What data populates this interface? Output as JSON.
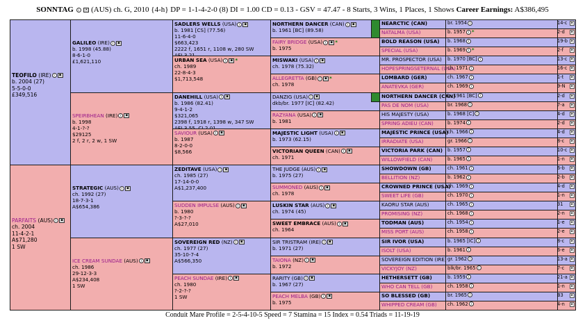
{
  "header": {
    "name": "SONNTAG",
    "details": "(AUS) ch. G, 2010 {4-h} DP = 1-1-4-2-0 (8) DI = 1.00   CD = 0.13 - GSV = 47.47 - 8 Starts, 3 Wins, 1 Places, 1 Shows",
    "earnings_label": "Career Earnings:",
    "earnings_value": "A$386,495"
  },
  "icons": {
    "info": "info-icon",
    "image": "photo-icon",
    "more": "arrow-right-icon"
  },
  "gen1": [
    {
      "name": "TEOFILO",
      "suffix": "(IRE)",
      "bold": true,
      "lines": [
        "b. 2004 (27)",
        "5-5-0-0",
        "£349,516"
      ]
    },
    {
      "name": "PARFAITS",
      "suffix": "(AUS)",
      "bold": false,
      "lines": [
        "ch. 2004",
        "11-4-2-1",
        "A$71,280",
        "1 SW"
      ]
    }
  ],
  "gen2": [
    {
      "name": "GALILEO",
      "suffix": "(IRE)",
      "bold": true,
      "lines": [
        "b. 1998 (45.88)",
        "8-6-1-0",
        "£1,621,110"
      ]
    },
    {
      "name": "SPEIRBHEAN",
      "suffix": "(IRE)",
      "bold": false,
      "lines": [
        "b. 1998",
        "4-1-?-?",
        "$29125",
        "2 f, 2 r, 2 w, 1 SW"
      ]
    },
    {
      "name": "STRATEGIC",
      "suffix": "(AUS)",
      "bold": true,
      "lines": [
        "ch. 1992 (27)",
        "18-7-3-1",
        "A$654,386"
      ]
    },
    {
      "name": "ICE CREAM SUNDAE",
      "suffix": "(AUS)",
      "bold": false,
      "lines": [
        "ch. 1986",
        "29-12-3-3",
        "A$234,408",
        "1 SW"
      ]
    }
  ],
  "gen3": [
    {
      "name": "SADLERS WELLS",
      "suffix": "(USA)",
      "bold": true,
      "lines": [
        "b. 1981 [CS] (77.56)",
        "11-6-4-0",
        "$663,423",
        "2222 f, 1651 r, 1108 w, 280 SW",
        "AEI 3.21"
      ]
    },
    {
      "name": "URBAN SEA",
      "suffix": "(USA)",
      "bold": true,
      "star": "*",
      "lines": [
        "ch. 1989",
        "22-8-4-3",
        "$1,713,548"
      ]
    },
    {
      "name": "DANEHILL",
      "suffix": "(USA)",
      "bold": true,
      "lines": [
        "b. 1986 (82.41)",
        "9-4-1-2",
        "$321,065",
        "2398 f, 1918 r, 1398 w, 347 SW",
        "AEI 3.55, CI 2.01"
      ]
    },
    {
      "name": "SAVIOUR",
      "suffix": "(USA)",
      "bold": false,
      "lines": [
        "b. 1987",
        "8-2-0-0",
        "$8,566"
      ]
    },
    {
      "name": "ZEDITAVE",
      "suffix": "(USA)",
      "bold": true,
      "lines": [
        "ch. 1985 (27)",
        "17-14-0-0",
        "A$1,237,400"
      ]
    },
    {
      "name": "SUDDEN IMPULSE",
      "suffix": "(AUS)",
      "bold": false,
      "lines": [
        "b. 1980",
        "?-3-?-?",
        "A$27,010"
      ]
    },
    {
      "name": "SOVEREIGN RED",
      "suffix": "(NZ)",
      "bold": true,
      "lines": [
        "ch. 1977 (27)",
        "35-10-7-4",
        "A$566,350"
      ]
    },
    {
      "name": "PEACH SUNDAE",
      "suffix": "(IRE)",
      "bold": false,
      "lines": [
        "ch. 1980",
        "?-2-?-?",
        "1 SW"
      ]
    }
  ],
  "gen4": [
    {
      "name": "NORTHERN DANCER",
      "suffix": "(CAN)",
      "bold": true,
      "lines": [
        "b. 1961 [BC] (89.58)"
      ]
    },
    {
      "name": "FAIRY BRIDGE",
      "suffix": "(USA)",
      "bold": false,
      "star": "*",
      "lines": [
        "b. 1975"
      ]
    },
    {
      "name": "MISWAKI",
      "suffix": "(USA)",
      "bold": true,
      "lines": [
        "ch. 1978 (75.32)"
      ]
    },
    {
      "name": "ALLEGRETTA",
      "suffix": "(GB)",
      "bold": false,
      "star": "*",
      "lines": [
        "ch. 1978"
      ]
    },
    {
      "name": "DANZIG",
      "suffix": "(USA)",
      "bold": false,
      "lines": [
        "dkb/br. 1977 [IC] (82.42)"
      ]
    },
    {
      "name": "RAZYANA",
      "suffix": "(USA)",
      "bold": false,
      "lines": [
        "b. 1981"
      ]
    },
    {
      "name": "MAJESTIC LIGHT",
      "suffix": "(USA)",
      "bold": true,
      "lines": [
        "b. 1973 (62.15)"
      ]
    },
    {
      "name": "VICTORIAN QUEEN",
      "suffix": "(CAN)",
      "bold": true,
      "lines": [
        "ch. 1971"
      ]
    },
    {
      "name": "THE JUDGE",
      "suffix": "(AUS)",
      "bold": false,
      "lines": [
        "b. 1975 (27)"
      ]
    },
    {
      "name": "SUMMONED",
      "suffix": "(AUS)",
      "bold": false,
      "lines": [
        "ch. 1978"
      ]
    },
    {
      "name": "LUSKIN STAR",
      "suffix": "(AUS)",
      "bold": true,
      "lines": [
        "ch. 1974 (45)"
      ]
    },
    {
      "name": "SWEET EMBRACE",
      "suffix": "(AUS)",
      "bold": true,
      "lines": [
        "ch. 1964"
      ]
    },
    {
      "name": "SIR TRISTRAM",
      "suffix": "(IRE)",
      "bold": false,
      "lines": [
        "b. 1971 (27)"
      ]
    },
    {
      "name": "TAIONA",
      "suffix": "(NZ)",
      "bold": false,
      "lines": [
        "b. 1972"
      ]
    },
    {
      "name": "RARITY",
      "suffix": "(GB)",
      "bold": false,
      "lines": [
        "b. 1967 (27)"
      ]
    },
    {
      "name": "PEACH MELBA",
      "suffix": "(GB)",
      "bold": false,
      "lines": [
        "b. 1975"
      ]
    }
  ],
  "gen5": [
    {
      "name": "NEARCTIC (CAN)",
      "bold": true,
      "info": "br. 1954",
      "mini": "14-c"
    },
    {
      "name": "NATALMA (USA)",
      "bold": false,
      "info": "b. 1957",
      "star": "*",
      "mini": "2-d"
    },
    {
      "name": "BOLD REASON (USA)",
      "bold": true,
      "info": "b. 1968",
      "mini": "19-b"
    },
    {
      "name": "SPECIAL (USA)",
      "bold": false,
      "info": "b. 1969",
      "star": "*",
      "mini": "2-f"
    },
    {
      "name": "MR. PROSPECTOR (USA)",
      "bold": false,
      "info": "b. 1970 [BC]",
      "mini": "13-c"
    },
    {
      "name": "HOPESPRINGSETERNAL (USA)",
      "bold": false,
      "info": "ch. 1971",
      "mini": "16-c"
    },
    {
      "name": "LOMBARD (GER)",
      "bold": true,
      "info": "ch. 1967",
      "mini": "1-t"
    },
    {
      "name": "ANATEVKA (GER)",
      "bold": false,
      "info": "ch. 1969",
      "mini": "9-N"
    },
    {
      "name": "NORTHERN DANCER (CAN)",
      "bold": true,
      "info": "b. 1961 [BC]",
      "mini": "2-d"
    },
    {
      "name": "PAS DE NOM (USA)",
      "bold": false,
      "info": "br. 1968",
      "mini": "7-a"
    },
    {
      "name": "HIS MAJESTY (USA)",
      "bold": false,
      "info": "b. 1968 [C]",
      "mini": "4-d"
    },
    {
      "name": "SPRING ADIEU (CAN)",
      "bold": false,
      "info": "b. 1974",
      "mini": "2-d"
    },
    {
      "name": "MAJESTIC PRINCE (USA)",
      "bold": true,
      "info": "ch. 1966",
      "mini": "4-d"
    },
    {
      "name": "IRRADIATE (USA)",
      "bold": false,
      "info": "gr. 1966",
      "mini": "8-c"
    },
    {
      "name": "VICTORIA PARK (CAN)",
      "bold": true,
      "info": "b. 1957",
      "mini": "10-c"
    },
    {
      "name": "WILLOWFIELD (CAN)",
      "bold": false,
      "info": "b. 1965",
      "mini": "1-n"
    },
    {
      "name": "SHOWDOWN (GB)",
      "bold": true,
      "info": "ch. 1961",
      "mini": "6-b"
    },
    {
      "name": "BELLITION (NZ)",
      "bold": false,
      "info": "b. 1962",
      "mini": "2-b"
    },
    {
      "name": "CROWNED PRINCE (USA)",
      "bold": true,
      "info": "ch. 1969",
      "mini": "4-d"
    },
    {
      "name": "SWEET LIFE (GB)",
      "bold": false,
      "info": "ch. 1970",
      "mini": "1-n"
    },
    {
      "name": "KAORU STAR (AUS)",
      "bold": false,
      "info": "ch. 1965",
      "mini": "31"
    },
    {
      "name": "PROMISING (NZ)",
      "bold": false,
      "info": "ch. 1968",
      "mini": "2-n"
    },
    {
      "name": "TODMAN (AUS)",
      "bold": true,
      "info": "ch. 1954",
      "mini": "1-e"
    },
    {
      "name": "MISS PORT (AUS)",
      "bold": false,
      "info": "ch. 1958",
      "mini": "2-e"
    },
    {
      "name": "SIR IVOR (USA)",
      "bold": true,
      "info": "b. 1965 [IC]",
      "mini": "8-c"
    },
    {
      "name": "ISOLT (USA)",
      "bold": false,
      "info": "b. 1961",
      "mini": "6-e"
    },
    {
      "name": "SOVEREIGN EDITION (IRE)",
      "bold": false,
      "info": "gr. 1962",
      "mini": "13-a"
    },
    {
      "name": "VICKYJOY (NZ)",
      "bold": false,
      "info": "blk/br. 1965",
      "mini": "7-c"
    },
    {
      "name": "HETHERSETT (GB)",
      "bold": true,
      "info": "b. 1959",
      "mini": "21-a"
    },
    {
      "name": "WHO CAN TELL (GB)",
      "bold": false,
      "info": "ch. 1958",
      "mini": "1-n"
    },
    {
      "name": "SO BLESSED (GB)",
      "bold": true,
      "info": "br. 1965",
      "mini": "B3"
    },
    {
      "name": "WHIPPED CREAM (GB)",
      "bold": false,
      "info": "ch. 1962",
      "mini": "4-n"
    }
  ],
  "footer": "Conduit Mare Profile = 2-5-4-10-5   Speed = 7   Stamina = 15   Index = 0.54   Triads = 11-19-19"
}
